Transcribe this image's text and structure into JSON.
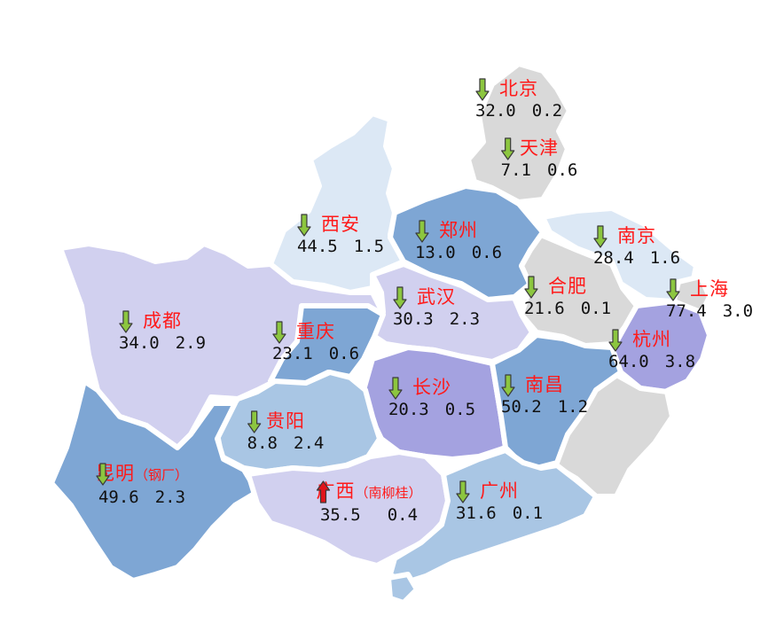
{
  "colors": {
    "down_arrow": "#8cc63f",
    "up_arrow": "#e0151b",
    "city_label": "#ff1a1a",
    "region_gray": "#d9d9d9",
    "region_lightblue": "#dce8f5",
    "region_midblue": "#a9c6e4",
    "region_blue": "#7ea6d4",
    "region_lavender": "#d1d0ef",
    "region_purple": "#a4a2e0"
  },
  "cities": [
    {
      "id": "beijing",
      "name": "北京",
      "note": "",
      "value": "32.0",
      "direction": "down",
      "change": "0.2"
    },
    {
      "id": "tianjin",
      "name": "天津",
      "note": "",
      "value": "7.1",
      "direction": "down",
      "change": "0.6"
    },
    {
      "id": "xian",
      "name": "西安",
      "note": "",
      "value": "44.5",
      "direction": "down",
      "change": "1.5"
    },
    {
      "id": "zhengzhou",
      "name": "郑州",
      "note": "",
      "value": "13.0",
      "direction": "down",
      "change": "0.6"
    },
    {
      "id": "nanjing",
      "name": "南京",
      "note": "",
      "value": "28.4",
      "direction": "down",
      "change": "1.6"
    },
    {
      "id": "hefei",
      "name": "合肥",
      "note": "",
      "value": "21.6",
      "direction": "down",
      "change": "0.1"
    },
    {
      "id": "shanghai",
      "name": "上海",
      "note": "",
      "value": "77.4",
      "direction": "down",
      "change": "3.0"
    },
    {
      "id": "wuhan",
      "name": "武汉",
      "note": "",
      "value": "30.3",
      "direction": "down",
      "change": "2.3"
    },
    {
      "id": "chengdu",
      "name": "成都",
      "note": "",
      "value": "34.0",
      "direction": "down",
      "change": "2.9"
    },
    {
      "id": "chongqing",
      "name": "重庆",
      "note": "",
      "value": "23.1",
      "direction": "down",
      "change": "0.6"
    },
    {
      "id": "hangzhou",
      "name": "杭州",
      "note": "",
      "value": "64.0",
      "direction": "down",
      "change": "3.8"
    },
    {
      "id": "changsha",
      "name": "长沙",
      "note": "",
      "value": "20.3",
      "direction": "down",
      "change": "0.5"
    },
    {
      "id": "nanchang",
      "name": "南昌",
      "note": "",
      "value": "50.2",
      "direction": "down",
      "change": "1.2"
    },
    {
      "id": "guiyang",
      "name": "贵阳",
      "note": "",
      "value": "8.8",
      "direction": "down",
      "change": "2.4"
    },
    {
      "id": "kunming",
      "name": "昆明",
      "note": "（钢厂）",
      "value": "49.6",
      "direction": "down",
      "change": "2.3"
    },
    {
      "id": "guangxi",
      "name": "广西",
      "note": "（南柳桂）",
      "value": "35.5",
      "direction": "up",
      "change": "0.4"
    },
    {
      "id": "guangzhou",
      "name": "广州",
      "note": "",
      "value": "31.6",
      "direction": "down",
      "change": "0.1"
    }
  ]
}
